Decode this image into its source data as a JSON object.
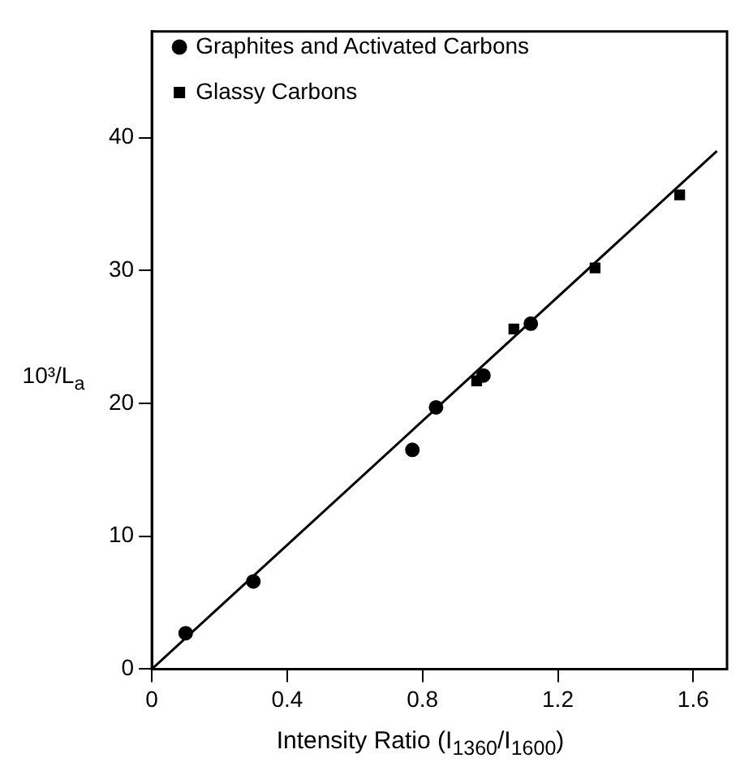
{
  "chart_data": {
    "type": "scatter",
    "xlabel": "Intensity Ratio (I$_{1360}$/I$_{1600}$)",
    "ylabel": "10³/L$_{a}$",
    "xlim": [
      0,
      1.7
    ],
    "xticks": [
      0,
      0.4,
      0.8,
      1.2,
      1.6
    ],
    "ylim": [
      0,
      48
    ],
    "yticks": [
      0,
      10,
      20,
      30,
      40
    ],
    "legend": "top left",
    "grid": false,
    "series": [
      {
        "name": "Graphites and Activated Carbons",
        "color": "#000000",
        "marker": "circle",
        "x": [
          0.1,
          0.3,
          0.77,
          0.84,
          0.98,
          1.12
        ],
        "values": [
          2.7,
          6.6,
          16.5,
          19.7,
          22.1,
          26.0
        ]
      },
      {
        "name": "Glassy Carbons",
        "color": "#000000",
        "marker": "square",
        "x": [
          0.96,
          1.07,
          1.31,
          1.56
        ],
        "values": [
          21.7,
          25.6,
          30.2,
          35.7
        ]
      },
      {
        "type": "line",
        "color": "#000000",
        "marker": "none",
        "x": [
          0,
          1.67
        ],
        "values": [
          0,
          39.0
        ]
      }
    ]
  }
}
